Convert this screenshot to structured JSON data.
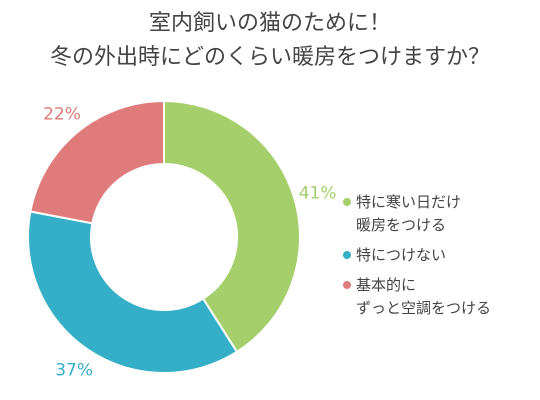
{
  "chart_data": {
    "type": "pie",
    "variant": "donut",
    "title_lines": [
      "室内飼いの猫のために！",
      "冬の外出時にどのくらい暖房をつけますか？"
    ],
    "slices": [
      {
        "label_lines": [
          "特に寒い日だけ",
          "暖房をつける"
        ],
        "value": 41,
        "value_label": "41%",
        "color": "#a5cf6a"
      },
      {
        "label_lines": [
          "特につけない"
        ],
        "value": 37,
        "value_label": "37%",
        "color": "#35aec8"
      },
      {
        "label_lines": [
          "基本的に",
          "ずっと空調をつける"
        ],
        "value": 22,
        "value_label": "22%",
        "color": "#e07b7b"
      }
    ],
    "start_angle_deg": 0,
    "direction": "clockwise",
    "legend_position": "right"
  }
}
